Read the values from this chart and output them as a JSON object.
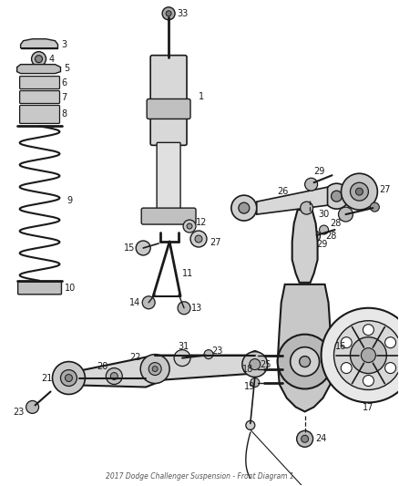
{
  "title": "2017 Dodge Challenger Suspension - Front Diagram 1",
  "bg_color": "#ffffff",
  "line_color": "#1a1a1a",
  "fig_w": 4.38,
  "fig_h": 5.33,
  "dpi": 100
}
